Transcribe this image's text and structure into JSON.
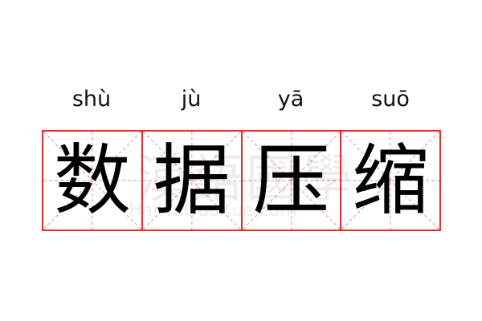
{
  "characters": [
    {
      "pinyin": "shù",
      "hanzi": "数"
    },
    {
      "pinyin": "jù",
      "hanzi": "据"
    },
    {
      "pinyin": "yā",
      "hanzi": "压"
    },
    {
      "pinyin": "suō",
      "hanzi": "缩"
    }
  ],
  "watermark": {
    "chinese": "漢語國學",
    "latin": "HanYuGuoXue.com"
  },
  "colors": {
    "grid_border": "#ee2b2b",
    "guide_lines": "#f4a0a0"
  }
}
